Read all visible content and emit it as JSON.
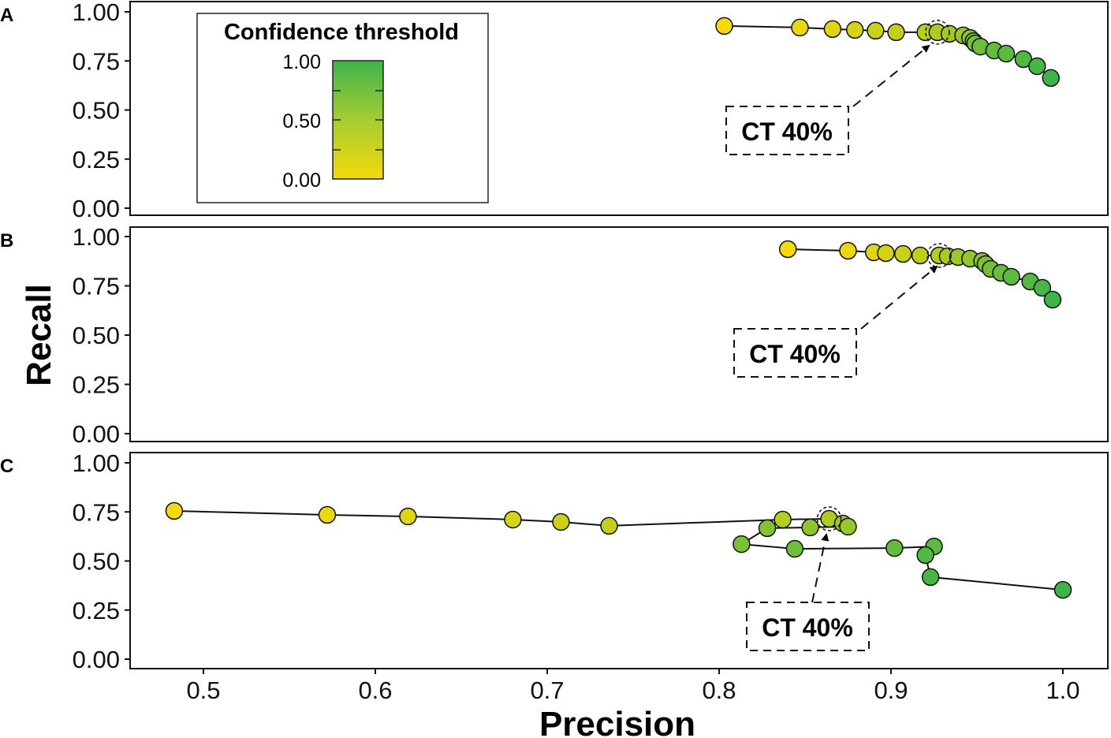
{
  "chart_data": [
    {
      "panel": "A",
      "type": "line",
      "xlim": [
        0.455,
        1.025
      ],
      "ylim": [
        0,
        1
      ],
      "ct_index": 7,
      "annotation": "CT 40%",
      "x": [
        0.803,
        0.847,
        0.866,
        0.879,
        0.891,
        0.903,
        0.92,
        0.927,
        0.934,
        0.942,
        0.946,
        0.948,
        0.949,
        0.952,
        0.96,
        0.967,
        0.977,
        0.985,
        0.993
      ],
      "y": [
        0.928,
        0.92,
        0.912,
        0.908,
        0.904,
        0.896,
        0.896,
        0.896,
        0.888,
        0.88,
        0.867,
        0.851,
        0.839,
        0.823,
        0.803,
        0.787,
        0.759,
        0.723,
        0.663
      ]
    },
    {
      "panel": "B",
      "type": "line",
      "xlim": [
        0.455,
        1.025
      ],
      "ylim": [
        0,
        1
      ],
      "ct_index": 6,
      "annotation": "CT 40%",
      "x": [
        0.84,
        0.875,
        0.89,
        0.897,
        0.907,
        0.917,
        0.928,
        0.933,
        0.939,
        0.946,
        0.953,
        0.955,
        0.958,
        0.964,
        0.97,
        0.981,
        0.988,
        0.994
      ],
      "y": [
        0.936,
        0.928,
        0.92,
        0.916,
        0.912,
        0.904,
        0.904,
        0.9,
        0.896,
        0.888,
        0.876,
        0.86,
        0.836,
        0.816,
        0.796,
        0.772,
        0.74,
        0.68
      ]
    },
    {
      "panel": "C",
      "type": "line",
      "xlim": [
        0.455,
        1.025
      ],
      "ylim": [
        0,
        1
      ],
      "ct_index": 7,
      "annotation": "CT 40%",
      "x": [
        0.483,
        0.572,
        0.619,
        0.68,
        0.708,
        0.736,
        0.837,
        0.864,
        0.872,
        0.875,
        0.853,
        0.828,
        0.813,
        0.844,
        0.902,
        0.925,
        0.92,
        0.923,
        1.0
      ],
      "y": [
        0.755,
        0.735,
        0.727,
        0.711,
        0.699,
        0.679,
        0.711,
        0.715,
        0.691,
        0.675,
        0.671,
        0.667,
        0.586,
        0.562,
        0.566,
        0.574,
        0.53,
        0.418,
        0.353
      ]
    }
  ],
  "xticks": [
    "0.5",
    "0.6",
    "0.7",
    "0.8",
    "0.9",
    "1.0"
  ],
  "yticks": [
    "0.00",
    "0.25",
    "0.50",
    "0.75",
    "1.00"
  ],
  "xlabel": "Precision",
  "ylabel": "Recall",
  "legend": {
    "title": "Confidence threshold",
    "ticks": [
      "1.00",
      "0.50",
      "0.00"
    ]
  },
  "colors": {
    "low": "#f5d90a",
    "high": "#3cb44a"
  }
}
